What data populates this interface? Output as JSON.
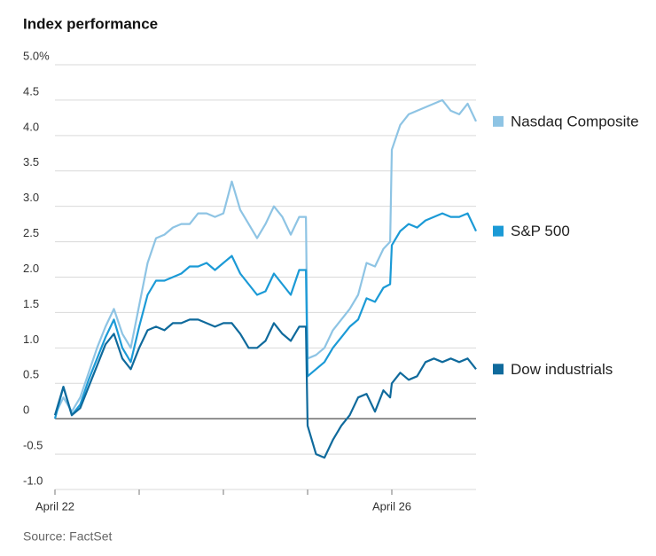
{
  "chart_data": {
    "type": "line",
    "title": "Index performance",
    "source": "Source: FactSet",
    "x": [
      0,
      0.1,
      0.2,
      0.3,
      0.4,
      0.5,
      0.6,
      0.7,
      0.8,
      0.9,
      1.0,
      1.1,
      1.2,
      1.3,
      1.4,
      1.5,
      1.6,
      1.7,
      1.8,
      1.9,
      2.0,
      2.1,
      2.2,
      2.3,
      2.4,
      2.5,
      2.6,
      2.7,
      2.8,
      2.9,
      2.98,
      3.0,
      3.1,
      3.2,
      3.3,
      3.4,
      3.5,
      3.6,
      3.7,
      3.8,
      3.9,
      3.98,
      4.0,
      4.1,
      4.2,
      4.3,
      4.4,
      4.5,
      4.6,
      4.7,
      4.8,
      4.9,
      5.0
    ],
    "xlim": [
      0,
      5
    ],
    "xticks": [
      0,
      1,
      2,
      3,
      4
    ],
    "xtick_labels": [
      {
        "value": 0,
        "label": "April 22"
      },
      {
        "value": 4,
        "label": "April 26"
      }
    ],
    "ylim": [
      -1,
      5
    ],
    "yticks": [
      {
        "value": 5,
        "label": "5.0%"
      },
      4.5,
      {
        "value": 4,
        "label": "4.0"
      },
      3.5,
      {
        "value": 3,
        "label": "3.0"
      },
      2.5,
      {
        "value": 2,
        "label": "2.0"
      },
      1.5,
      {
        "value": 1,
        "label": "1.0"
      },
      0.5,
      0,
      -0.5,
      {
        "value": -1,
        "label": "-1.0"
      }
    ],
    "grid": true,
    "series": [
      {
        "name": "Nasdaq Composite",
        "color": "#8ec4e4",
        "values": [
          0.05,
          0.3,
          0.1,
          0.3,
          0.65,
          1.0,
          1.3,
          1.55,
          1.2,
          1.0,
          1.6,
          2.2,
          2.55,
          2.6,
          2.7,
          2.75,
          2.75,
          2.9,
          2.9,
          2.85,
          2.9,
          3.35,
          2.95,
          2.75,
          2.55,
          2.75,
          3.0,
          2.85,
          2.6,
          2.85,
          2.85,
          0.85,
          0.9,
          1.0,
          1.25,
          1.4,
          1.55,
          1.75,
          2.2,
          2.15,
          2.4,
          2.5,
          3.8,
          4.15,
          4.3,
          4.35,
          4.4,
          4.45,
          4.5,
          4.35,
          4.3,
          4.45,
          4.2
        ]
      },
      {
        "name": "S&P 500",
        "color": "#1b9ad6",
        "values": [
          0.0,
          0.45,
          0.05,
          0.2,
          0.55,
          0.85,
          1.15,
          1.4,
          1.0,
          0.8,
          1.3,
          1.75,
          1.95,
          1.95,
          2.0,
          2.05,
          2.15,
          2.15,
          2.2,
          2.1,
          2.2,
          2.3,
          2.05,
          1.9,
          1.75,
          1.8,
          2.05,
          1.9,
          1.75,
          2.1,
          2.1,
          0.6,
          0.7,
          0.8,
          1.0,
          1.15,
          1.3,
          1.4,
          1.7,
          1.65,
          1.85,
          1.9,
          2.45,
          2.65,
          2.75,
          2.7,
          2.8,
          2.85,
          2.9,
          2.85,
          2.85,
          2.9,
          2.65
        ]
      },
      {
        "name": "Dow industrials",
        "color": "#0f6a9c",
        "values": [
          0.05,
          0.45,
          0.05,
          0.15,
          0.45,
          0.75,
          1.05,
          1.2,
          0.85,
          0.7,
          1.0,
          1.25,
          1.3,
          1.25,
          1.35,
          1.35,
          1.4,
          1.4,
          1.35,
          1.3,
          1.35,
          1.35,
          1.2,
          1.0,
          1.0,
          1.1,
          1.35,
          1.2,
          1.1,
          1.3,
          1.3,
          -0.1,
          -0.5,
          -0.55,
          -0.3,
          -0.1,
          0.05,
          0.3,
          0.35,
          0.1,
          0.4,
          0.3,
          0.5,
          0.65,
          0.55,
          0.6,
          0.8,
          0.85,
          0.8,
          0.85,
          0.8,
          0.85,
          0.7
        ]
      }
    ]
  }
}
